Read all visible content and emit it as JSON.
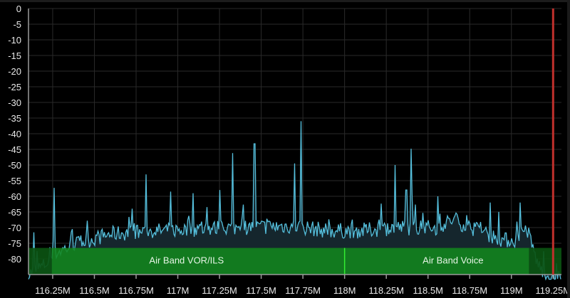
{
  "chart_data": {
    "type": "line",
    "title": "",
    "xlabel": "",
    "ylabel": "",
    "xlim": [
      116.105,
      119.3
    ],
    "ylim": [
      -85,
      0
    ],
    "grid": true,
    "y_ticks": [
      "0",
      "-5",
      "-10",
      "-15",
      "-20",
      "-25",
      "-30",
      "-35",
      "-40",
      "-45",
      "-50",
      "-55",
      "-60",
      "-65",
      "-70",
      "-75",
      "-80"
    ],
    "x_ticks": [
      {
        "value": 116.25,
        "label": "116.25M"
      },
      {
        "value": 116.5,
        "label": "116.5M"
      },
      {
        "value": 116.75,
        "label": "116.75M"
      },
      {
        "value": 117.0,
        "label": "117M"
      },
      {
        "value": 117.25,
        "label": "117.25M"
      },
      {
        "value": 117.5,
        "label": "117.5M"
      },
      {
        "value": 117.75,
        "label": "117.75M"
      },
      {
        "value": 118.0,
        "label": "118M"
      },
      {
        "value": 118.25,
        "label": "118.25M"
      },
      {
        "value": 118.5,
        "label": "118.5M"
      },
      {
        "value": 118.75,
        "label": "118.75M"
      },
      {
        "value": 119.0,
        "label": "119M"
      },
      {
        "value": 119.25,
        "label": "119.25M"
      }
    ],
    "noise_floor_dB": [
      [
        116.105,
        -85
      ],
      [
        116.13,
        -84
      ],
      [
        116.2,
        -82
      ],
      [
        116.27,
        -78
      ],
      [
        116.4,
        -75
      ],
      [
        116.6,
        -72
      ],
      [
        116.9,
        -71
      ],
      [
        117.3,
        -70
      ],
      [
        117.7,
        -69.5
      ],
      [
        117.9,
        -71
      ],
      [
        118.1,
        -71
      ],
      [
        118.3,
        -70
      ],
      [
        118.55,
        -70
      ],
      [
        118.65,
        -67.5
      ],
      [
        118.8,
        -71
      ],
      [
        118.95,
        -74
      ],
      [
        119.05,
        -74
      ],
      [
        119.09,
        -70
      ],
      [
        119.12,
        -75
      ],
      [
        119.16,
        -82
      ],
      [
        119.22,
        -86
      ],
      [
        119.3,
        -86
      ]
    ],
    "peaks": [
      {
        "freq_MHz": 116.135,
        "dB": -71.5
      },
      {
        "freq_MHz": 116.26,
        "dB": -57.3
      },
      {
        "freq_MHz": 116.81,
        "dB": -53
      },
      {
        "freq_MHz": 116.96,
        "dB": -58.5
      },
      {
        "freq_MHz": 117.09,
        "dB": -59
      },
      {
        "freq_MHz": 117.25,
        "dB": -58
      },
      {
        "freq_MHz": 117.33,
        "dB": -46.2
      },
      {
        "freq_MHz": 117.46,
        "dB": -43.2
      },
      {
        "freq_MHz": 117.7,
        "dB": -49.5
      },
      {
        "freq_MHz": 117.738,
        "dB": -36
      },
      {
        "freq_MHz": 118.3,
        "dB": -50
      },
      {
        "freq_MHz": 118.4,
        "dB": -44.8
      },
      {
        "freq_MHz": 118.37,
        "dB": -58
      },
      {
        "freq_MHz": 118.56,
        "dB": -60
      },
      {
        "freq_MHz": 118.87,
        "dB": -62
      },
      {
        "freq_MHz": 119.05,
        "dB": -62
      }
    ],
    "bands": [
      {
        "label": "Air Band VOR/ILS",
        "start_MHz": 108.0,
        "end_MHz": 118.0
      },
      {
        "label": "Air Band Voice",
        "start_MHz": 118.0,
        "end_MHz": 137.0
      }
    ],
    "marker_MHz": 119.25
  },
  "colors": {
    "trace": "#55bfdc",
    "trace_fill": "#15262d",
    "band": "#12861e",
    "band_edge": "#0a5a0c",
    "band_divider": "#33ee33",
    "marker": "#c0302c",
    "grid": "#2a2a2a",
    "axis": "#9a9a9a"
  }
}
